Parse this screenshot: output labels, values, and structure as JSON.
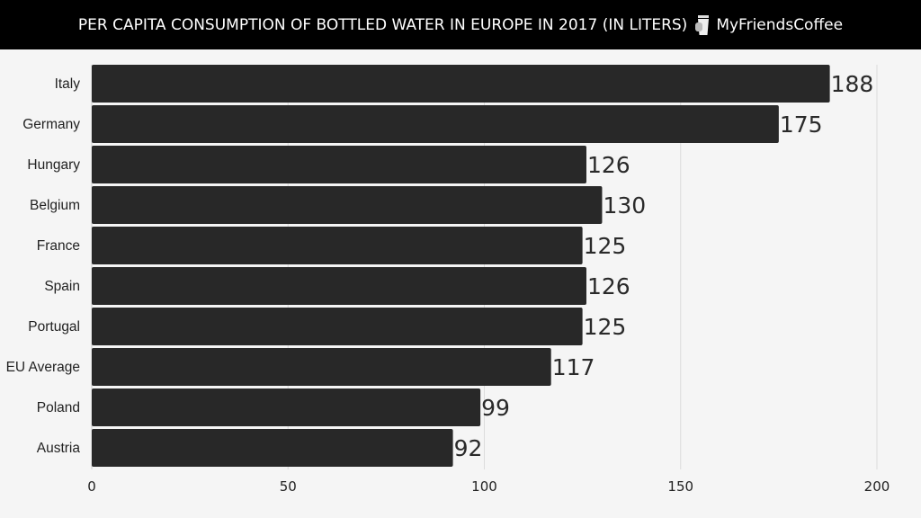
{
  "header": {
    "title": "PER CAPITA CONSUMPTION OF BOTTLED WATER IN EUROPE IN 2017 (IN LITERS)",
    "brand": "MyFriendsCoffee",
    "brand_icon": "coffee-cup-icon"
  },
  "chart_data": {
    "type": "bar",
    "orientation": "horizontal",
    "title": "PER CAPITA CONSUMPTION OF BOTTLED WATER IN EUROPE IN 2017 (IN LITERS)",
    "categories": [
      "Italy",
      "Germany",
      "Hungary",
      "Belgium",
      "France",
      "Spain",
      "Portugal",
      "EU Average",
      "Poland",
      "Austria"
    ],
    "values": [
      188,
      175,
      126,
      130,
      125,
      126,
      125,
      117,
      99,
      92
    ],
    "xlim": [
      0,
      200
    ],
    "xticks": [
      "0",
      "50",
      "100",
      "150",
      "200"
    ],
    "grid": true,
    "bar_color": "#282828",
    "background": "#f5f5f5"
  }
}
